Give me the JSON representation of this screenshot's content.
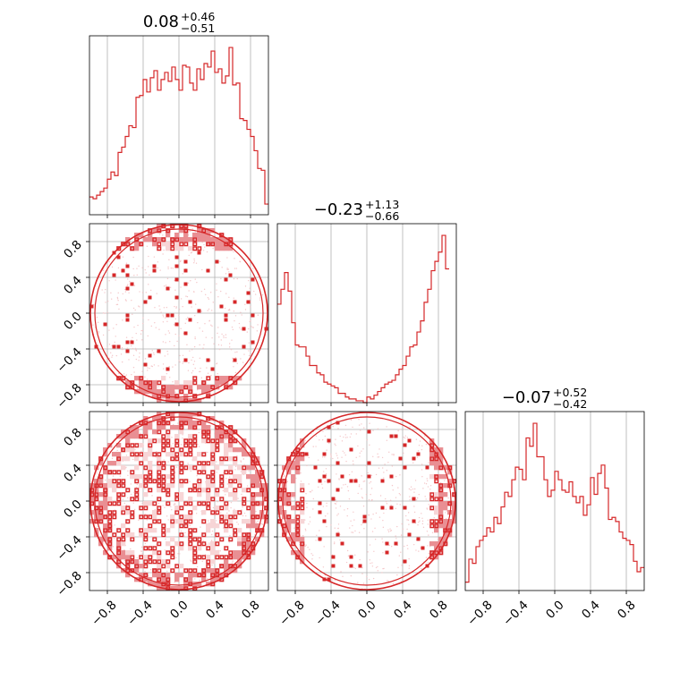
{
  "chart_data": {
    "type": "corner",
    "range": [
      -1,
      1
    ],
    "ticks": [
      -0.8,
      -0.4,
      0.0,
      0.4,
      0.8
    ],
    "tick_labels": [
      "−0.8",
      "−0.4",
      "0.0",
      "0.4",
      "0.8"
    ],
    "color": "#d62728",
    "grid": true,
    "titles": [
      {
        "value": "0.08",
        "upper": "+0.46",
        "lower": "−0.51"
      },
      {
        "value": "−0.23",
        "upper": "+1.13",
        "lower": "−0.66"
      },
      {
        "value": "−0.07",
        "upper": "+0.52",
        "lower": "−0.42"
      }
    ],
    "histograms": [
      {
        "param": 0,
        "bin_edges_start": -1.0,
        "bin_width": 0.04,
        "values": [
          0.1,
          0.09,
          0.11,
          0.13,
          0.15,
          0.2,
          0.24,
          0.22,
          0.35,
          0.38,
          0.44,
          0.5,
          0.49,
          0.66,
          0.67,
          0.76,
          0.69,
          0.77,
          0.81,
          0.7,
          0.76,
          0.8,
          0.75,
          0.83,
          0.76,
          0.7,
          0.84,
          0.83,
          0.74,
          0.7,
          0.82,
          0.76,
          0.85,
          0.83,
          0.92,
          0.8,
          0.82,
          0.74,
          0.78,
          0.94,
          0.73,
          0.74,
          0.54,
          0.53,
          0.48,
          0.44,
          0.36,
          0.26,
          0.25,
          0.06
        ]
      },
      {
        "param": 1,
        "bin_edges_start": -1.0,
        "bin_width": 0.04,
        "values": [
          0.53,
          0.61,
          0.7,
          0.6,
          0.43,
          0.31,
          0.3,
          0.3,
          0.25,
          0.2,
          0.2,
          0.16,
          0.15,
          0.11,
          0.1,
          0.09,
          0.08,
          0.05,
          0.05,
          0.03,
          0.02,
          0.02,
          0.01,
          0.01,
          0.0,
          0.03,
          0.02,
          0.04,
          0.06,
          0.08,
          0.1,
          0.11,
          0.12,
          0.15,
          0.18,
          0.2,
          0.25,
          0.3,
          0.31,
          0.38,
          0.44,
          0.54,
          0.61,
          0.71,
          0.76,
          0.81,
          0.9,
          0.72
        ]
      },
      {
        "param": 2,
        "bin_edges_start": -1.0,
        "bin_width": 0.04,
        "values": [
          0.04,
          0.15,
          0.13,
          0.21,
          0.24,
          0.26,
          0.3,
          0.28,
          0.35,
          0.32,
          0.4,
          0.47,
          0.45,
          0.53,
          0.59,
          0.58,
          0.53,
          0.73,
          0.69,
          0.8,
          0.64,
          0.64,
          0.53,
          0.45,
          0.48,
          0.57,
          0.53,
          0.48,
          0.47,
          0.52,
          0.45,
          0.42,
          0.45,
          0.36,
          0.41,
          0.54,
          0.46,
          0.56,
          0.6,
          0.49,
          0.34,
          0.35,
          0.33,
          0.28,
          0.25,
          0.24,
          0.22,
          0.14,
          0.09,
          0.11
        ]
      }
    ],
    "contours_2d": [
      {
        "x_param": 0,
        "y_param": 1,
        "description_shape": "upper and lower bands of a unit disk"
      },
      {
        "x_param": 0,
        "y_param": 2,
        "description_shape": "filled unit disk, noisy"
      },
      {
        "x_param": 1,
        "y_param": 2,
        "description_shape": "left and right edges of a unit disk"
      }
    ]
  }
}
